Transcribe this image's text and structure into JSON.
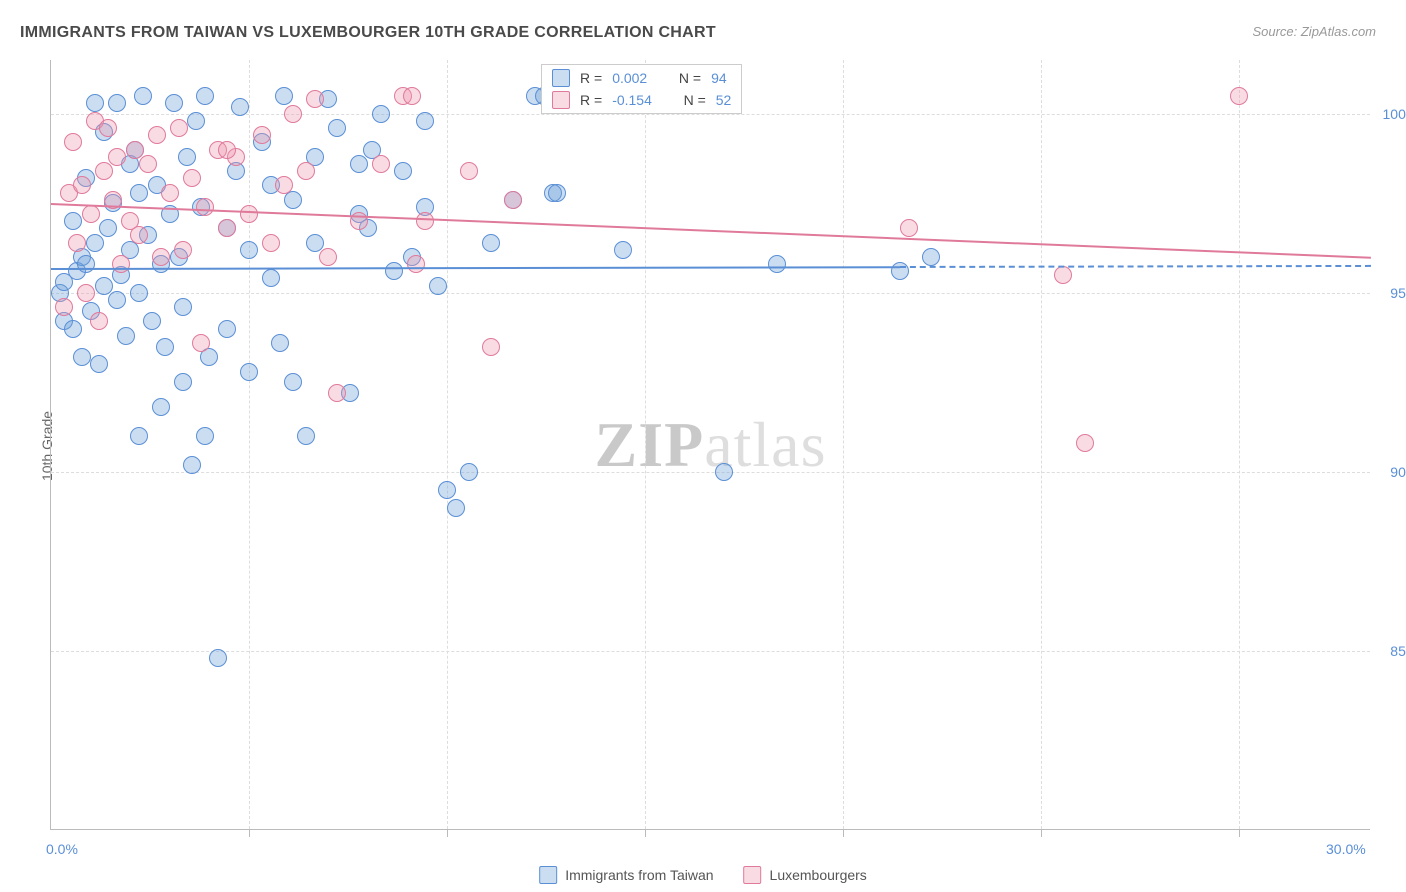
{
  "title": "IMMIGRANTS FROM TAIWAN VS LUXEMBOURGER 10TH GRADE CORRELATION CHART",
  "source": "Source: ZipAtlas.com",
  "ylabel": "10th Grade",
  "watermark_bold": "ZIP",
  "watermark_light": "atlas",
  "chart": {
    "type": "scatter",
    "xlim": [
      0,
      30
    ],
    "ylim": [
      80,
      101.5
    ],
    "ytick_values": [
      85,
      90,
      95,
      100
    ],
    "ytick_labels": [
      "85.0%",
      "90.0%",
      "95.0%",
      "100.0%"
    ],
    "xtick_values": [
      0,
      30
    ],
    "xtick_labels": [
      "0.0%",
      "30.0%"
    ],
    "vgrid_values": [
      4.5,
      9,
      13.5,
      18,
      22.5,
      27
    ],
    "background_color": "#ffffff",
    "grid_color": "#dddddd",
    "series": [
      {
        "name": "Immigrants from Taiwan",
        "color_fill": "rgba(106,159,216,0.35)",
        "color_stroke": "#5a8fd6",
        "marker": "circle",
        "marker_size": 18,
        "R": "0.002",
        "N": "94",
        "trend": {
          "x1": 0,
          "y1": 95.7,
          "x2": 19.3,
          "y2": 95.75,
          "dash_after_x": 19.3,
          "x2_dash": 30,
          "y2_dash": 95.78
        },
        "points": [
          [
            0.2,
            95.0
          ],
          [
            0.3,
            95.3
          ],
          [
            0.3,
            94.2
          ],
          [
            0.5,
            94.0
          ],
          [
            0.5,
            97.0
          ],
          [
            0.6,
            95.6
          ],
          [
            0.7,
            93.2
          ],
          [
            0.7,
            96.0
          ],
          [
            0.8,
            95.8
          ],
          [
            0.8,
            98.2
          ],
          [
            0.9,
            94.5
          ],
          [
            1.0,
            100.3
          ],
          [
            1.0,
            96.4
          ],
          [
            1.1,
            93.0
          ],
          [
            1.2,
            99.5
          ],
          [
            1.2,
            95.2
          ],
          [
            1.3,
            96.8
          ],
          [
            1.4,
            97.5
          ],
          [
            1.5,
            94.8
          ],
          [
            1.5,
            100.3
          ],
          [
            1.6,
            95.5
          ],
          [
            1.7,
            93.8
          ],
          [
            1.8,
            96.2
          ],
          [
            1.8,
            98.6
          ],
          [
            1.9,
            99.0
          ],
          [
            2.0,
            97.8
          ],
          [
            2.0,
            95.0
          ],
          [
            2.1,
            100.5
          ],
          [
            2.2,
            96.6
          ],
          [
            2.3,
            94.2
          ],
          [
            2.4,
            98.0
          ],
          [
            2.5,
            95.8
          ],
          [
            2.6,
            93.5
          ],
          [
            2.7,
            97.2
          ],
          [
            2.8,
            100.3
          ],
          [
            2.9,
            96.0
          ],
          [
            3.0,
            94.6
          ],
          [
            3.1,
            98.8
          ],
          [
            3.2,
            90.2
          ],
          [
            3.3,
            99.8
          ],
          [
            3.4,
            97.4
          ],
          [
            3.5,
            91.0
          ],
          [
            3.5,
            100.5
          ],
          [
            3.6,
            93.2
          ],
          [
            3.8,
            84.8
          ],
          [
            4.0,
            96.8
          ],
          [
            4.0,
            94.0
          ],
          [
            4.2,
            98.4
          ],
          [
            4.3,
            100.2
          ],
          [
            4.5,
            96.2
          ],
          [
            4.5,
            92.8
          ],
          [
            4.8,
            99.2
          ],
          [
            5.0,
            98.0
          ],
          [
            5.0,
            95.4
          ],
          [
            5.2,
            93.6
          ],
          [
            5.3,
            100.5
          ],
          [
            5.5,
            97.6
          ],
          [
            5.8,
            91.0
          ],
          [
            6.0,
            96.4
          ],
          [
            6.0,
            98.8
          ],
          [
            6.3,
            100.4
          ],
          [
            6.5,
            99.6
          ],
          [
            6.8,
            92.2
          ],
          [
            7.0,
            97.2
          ],
          [
            7.0,
            98.6
          ],
          [
            7.2,
            96.8
          ],
          [
            7.3,
            99.0
          ],
          [
            7.5,
            100.0
          ],
          [
            7.8,
            95.6
          ],
          [
            8.0,
            98.4
          ],
          [
            8.2,
            96.0
          ],
          [
            8.5,
            99.8
          ],
          [
            8.5,
            97.4
          ],
          [
            8.8,
            95.2
          ],
          [
            9.0,
            89.5
          ],
          [
            9.2,
            89.0
          ],
          [
            9.5,
            90.0
          ],
          [
            10.0,
            96.4
          ],
          [
            10.5,
            97.6
          ],
          [
            11.0,
            100.5
          ],
          [
            11.2,
            100.5
          ],
          [
            11.4,
            97.8
          ],
          [
            11.5,
            97.8
          ],
          [
            11.8,
            100.5
          ],
          [
            12.2,
            100.5
          ],
          [
            13.0,
            96.2
          ],
          [
            15.3,
            90.0
          ],
          [
            16.5,
            95.8
          ],
          [
            19.3,
            95.6
          ],
          [
            20.0,
            96.0
          ],
          [
            2.0,
            91.0
          ],
          [
            2.5,
            91.8
          ],
          [
            3.0,
            92.5
          ],
          [
            5.5,
            92.5
          ]
        ]
      },
      {
        "name": "Luxembourgers",
        "color_fill": "rgba(237,152,176,0.35)",
        "color_stroke": "#e07a9b",
        "marker": "circle",
        "marker_size": 18,
        "R": "-0.154",
        "N": "52",
        "trend": {
          "x1": 0,
          "y1": 97.5,
          "x2": 30,
          "y2": 96.0
        },
        "points": [
          [
            0.3,
            94.6
          ],
          [
            0.4,
            97.8
          ],
          [
            0.5,
            99.2
          ],
          [
            0.6,
            96.4
          ],
          [
            0.7,
            98.0
          ],
          [
            0.8,
            95.0
          ],
          [
            0.9,
            97.2
          ],
          [
            1.0,
            99.8
          ],
          [
            1.1,
            94.2
          ],
          [
            1.2,
            98.4
          ],
          [
            1.3,
            99.6
          ],
          [
            1.4,
            97.6
          ],
          [
            1.5,
            98.8
          ],
          [
            1.6,
            95.8
          ],
          [
            1.8,
            97.0
          ],
          [
            1.9,
            99.0
          ],
          [
            2.0,
            96.6
          ],
          [
            2.2,
            98.6
          ],
          [
            2.4,
            99.4
          ],
          [
            2.5,
            96.0
          ],
          [
            2.7,
            97.8
          ],
          [
            2.9,
            99.6
          ],
          [
            3.0,
            96.2
          ],
          [
            3.2,
            98.2
          ],
          [
            3.5,
            97.4
          ],
          [
            3.8,
            99.0
          ],
          [
            3.4,
            93.6
          ],
          [
            4.0,
            96.8
          ],
          [
            4.2,
            98.8
          ],
          [
            4.5,
            97.2
          ],
          [
            4.8,
            99.4
          ],
          [
            5.0,
            96.4
          ],
          [
            5.3,
            98.0
          ],
          [
            5.5,
            100.0
          ],
          [
            5.8,
            98.4
          ],
          [
            6.0,
            100.4
          ],
          [
            6.3,
            96.0
          ],
          [
            6.5,
            92.2
          ],
          [
            7.0,
            97.0
          ],
          [
            7.5,
            98.6
          ],
          [
            8.0,
            100.5
          ],
          [
            8.2,
            100.5
          ],
          [
            8.3,
            95.8
          ],
          [
            8.5,
            97.0
          ],
          [
            9.5,
            98.4
          ],
          [
            10.0,
            93.5
          ],
          [
            10.5,
            97.6
          ],
          [
            19.5,
            96.8
          ],
          [
            23.0,
            95.5
          ],
          [
            23.5,
            90.8
          ],
          [
            27.0,
            100.5
          ],
          [
            4.0,
            99.0
          ]
        ]
      }
    ]
  },
  "legend_top": {
    "r_label": "R =",
    "n_label": "N ="
  },
  "legend_bottom": {
    "items": [
      "Immigrants from Taiwan",
      "Luxembourgers"
    ]
  }
}
